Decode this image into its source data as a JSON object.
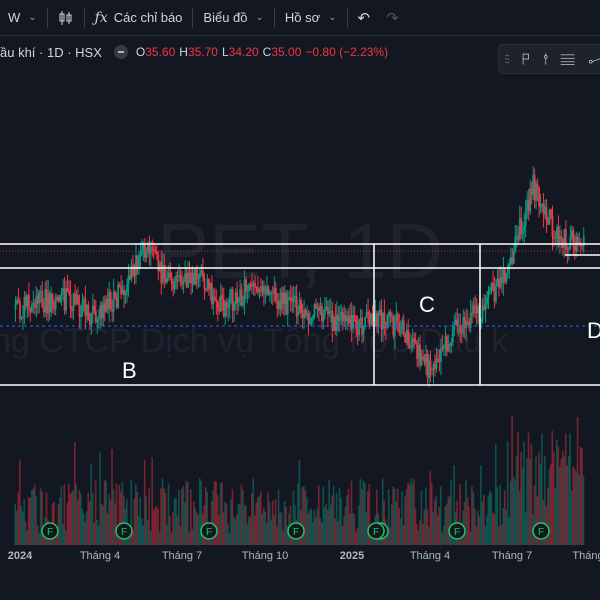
{
  "toolbar": {
    "interval": "W",
    "indicators_label": "Các chỉ báo",
    "chart_type_label": "Biểu đồ",
    "profile_label": "Hồ sơ"
  },
  "legend": {
    "symbol_text": "ầu khí · 1D · HSX",
    "o_label": "O",
    "o_value": "35.60",
    "h_label": "H",
    "h_value": "35.70",
    "l_label": "L",
    "l_value": "34.20",
    "c_label": "C",
    "c_value": "35.00",
    "change": "−0.80 (−2.23%)"
  },
  "watermark": {
    "symbol": "PET, 1D",
    "company": "ng CTCP Dịch vụ Tổng hợp Dầu k"
  },
  "icons": {
    "interval_menu": "chevron-down-icon",
    "candles": "candlestick-icon",
    "undo": "undo-icon",
    "redo": "redo-icon"
  },
  "colors": {
    "background": "#131722",
    "up": "#089981",
    "down": "#f23645",
    "annotation": "#ffffff",
    "earnings_marker": "#22c55e"
  },
  "chart_data": {
    "type": "candlestick",
    "title": "",
    "x_ticks": [
      "2024",
      "Tháng 4",
      "Tháng 7",
      "Tháng 10",
      "2025",
      "Tháng 4",
      "Tháng 7",
      "Tháng"
    ],
    "x_range": [
      "2023-11",
      "2025-10"
    ],
    "last_close": 35.0,
    "annotations": [
      "B",
      "C",
      "D"
    ],
    "earnings_markers": [
      "F",
      "F",
      "F",
      "F",
      "F",
      "F",
      "F",
      "F"
    ],
    "series": [
      {
        "x": "2023-12",
        "close": 32.6
      },
      {
        "x": "2024-01",
        "close": 32.9
      },
      {
        "x": "2024-02",
        "close": 33.0
      },
      {
        "x": "2024-03",
        "close": 32.4
      },
      {
        "x": "2024-04",
        "close": 33.2
      },
      {
        "x": "2024-05",
        "close": 34.8
      },
      {
        "x": "2024-06",
        "close": 33.6
      },
      {
        "x": "2024-07",
        "close": 33.8
      },
      {
        "x": "2024-08",
        "close": 32.7
      },
      {
        "x": "2024-09",
        "close": 33.4
      },
      {
        "x": "2024-10",
        "close": 33.0
      },
      {
        "x": "2024-11",
        "close": 32.6
      },
      {
        "x": "2024-12",
        "close": 32.3
      },
      {
        "x": "2025-01",
        "close": 32.0
      },
      {
        "x": "2025-02",
        "close": 32.3
      },
      {
        "x": "2025-03",
        "close": 31.9
      },
      {
        "x": "2025-04",
        "close": 30.4
      },
      {
        "x": "2025-05",
        "close": 32.0
      },
      {
        "x": "2025-06",
        "close": 32.6
      },
      {
        "x": "2025-07",
        "close": 34.0
      },
      {
        "x": "2025-08",
        "close": 37.2
      },
      {
        "x": "2025-09",
        "close": 35.2
      },
      {
        "x": "2025-10",
        "close": 35.0
      }
    ]
  }
}
